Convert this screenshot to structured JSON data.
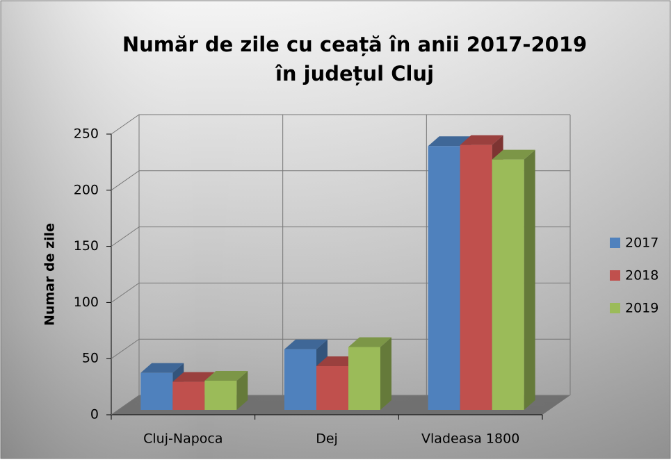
{
  "chart_data": {
    "type": "bar3d",
    "title": [
      "Număr de zile cu ceață în anii 2017-2019",
      "în județul Cluj"
    ],
    "y_label": "Numar de zile",
    "categories": [
      "Cluj-Napoca",
      "Dej",
      "Vladeasa 1800"
    ],
    "series": [
      {
        "name": "2017",
        "color": "#4f81bd",
        "values": [
          33,
          54,
          235
        ]
      },
      {
        "name": "2018",
        "color": "#c0504d",
        "values": [
          25,
          39,
          236
        ]
      },
      {
        "name": "2019",
        "color": "#9bbb59",
        "values": [
          26,
          56,
          223
        ]
      }
    ],
    "ylim": [
      0,
      250
    ],
    "yticks": [
      0,
      50,
      100,
      150,
      200,
      250
    ],
    "grid": true,
    "legend": "right"
  }
}
